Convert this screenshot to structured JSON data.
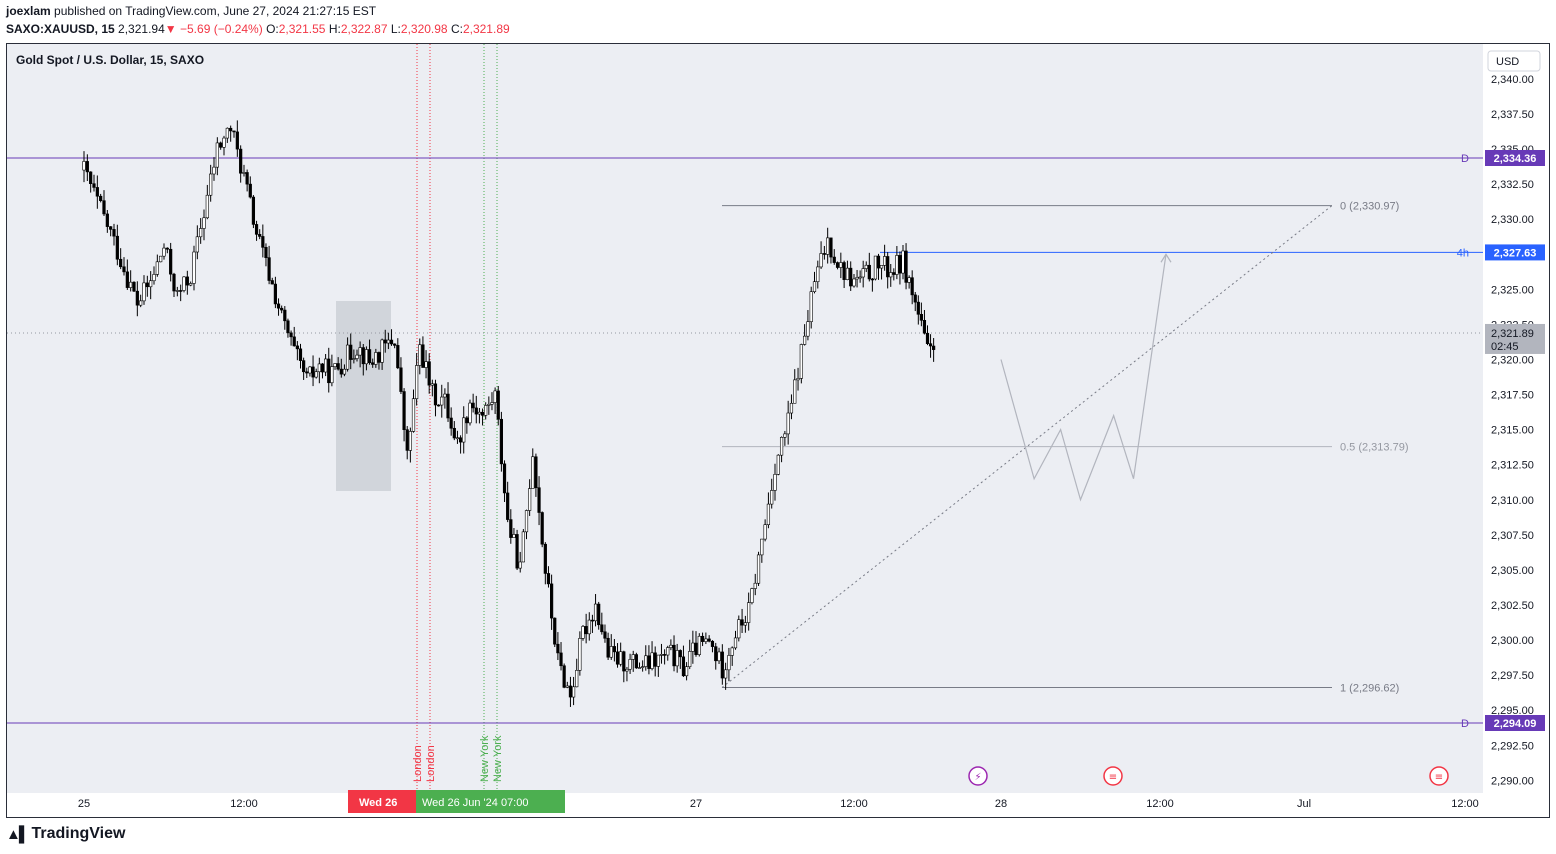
{
  "header": {
    "author": "joexlam",
    "published_text": "published on TradingView.com, June 27, 2024 21:27:15 EST",
    "symbol": "SAXO:XAUUSD, 15",
    "last": "2,321.94",
    "change": "−5.69 (−0.24%)",
    "o_label": "O:",
    "o_value": "2,321.55",
    "h_label": "H:",
    "h_value": "2,322.87",
    "l_label": "L:",
    "l_value": "2,320.98",
    "c_label": "C:",
    "c_value": "2,321.89"
  },
  "footer": {
    "brand": "TradingView"
  },
  "chart_data": {
    "type": "candlestick",
    "title": "Gold Spot / U.S. Dollar, 15, SAXO",
    "currency": "USD",
    "y_range": [
      2288.5,
      2341.5
    ],
    "y_ticks": [
      "2,290.00",
      "2,292.50",
      "2,295.00",
      "2,297.50",
      "2,300.00",
      "2,302.50",
      "2,305.00",
      "2,307.50",
      "2,310.00",
      "2,312.50",
      "2,315.00",
      "2,317.50",
      "2,320.00",
      "2,322.50",
      "2,325.00",
      "2,327.50",
      "2,330.00",
      "2,332.50",
      "2,335.00",
      "2,337.50",
      "2,340.00"
    ],
    "x_tick_labels": [
      "25",
      "12:00",
      "27",
      "12:00",
      "28",
      "12:00",
      "Jul",
      "12:00"
    ],
    "close_path": [
      [
        "Jun 25 00:00",
        2333.5
      ],
      [
        "Jun 25 02:00",
        2329
      ],
      [
        "Jun 25 04:00",
        2324
      ],
      [
        "Jun 25 05:00",
        2325.5
      ],
      [
        "Jun 25 06:00",
        2328
      ],
      [
        "Jun 25 07:00",
        2324.5
      ],
      [
        "Jun 25 08:00",
        2326
      ],
      [
        "Jun 25 10:00",
        2335
      ],
      [
        "Jun 25 11:00",
        2336.5
      ],
      [
        "Jun 25 12:00",
        2333
      ],
      [
        "Jun 25 13:00",
        2329
      ],
      [
        "Jun 25 14:00",
        2326
      ],
      [
        "Jun 25 15:00",
        2323
      ],
      [
        "Jun 25 16:00",
        2320.5
      ],
      [
        "Jun 25 17:00",
        2318.5
      ],
      [
        "Jun 25 18:00",
        2319.5
      ],
      [
        "Jun 25 19:00",
        2319
      ],
      [
        "Jun 25 20:00",
        2320
      ],
      [
        "Jun 25 21:00",
        2321
      ],
      [
        "Jun 25 22:00",
        2319.8
      ],
      [
        "Jun 26 00:00",
        2321.5
      ],
      [
        "Jun 26 01:00",
        2313
      ],
      [
        "Jun 26 02:00",
        2321
      ],
      [
        "Jun 26 03:00",
        2317.5
      ],
      [
        "Jun 26 04:00",
        2317
      ],
      [
        "Jun 26 05:00",
        2314
      ],
      [
        "Jun 26 06:00",
        2317
      ],
      [
        "Jun 26 07:00",
        2316
      ],
      [
        "Jun 26 08:00",
        2317.5
      ],
      [
        "Jun 26 09:00",
        2308.5
      ],
      [
        "Jun 26 10:00",
        2305
      ],
      [
        "Jun 26 11:00",
        2313.5
      ],
      [
        "Jun 26 12:00",
        2305
      ],
      [
        "Jun 26 13:00",
        2298.5
      ],
      [
        "Jun 26 14:00",
        2296
      ],
      [
        "Jun 26 15:00",
        2300.5
      ],
      [
        "Jun 26 16:00",
        2302.5
      ],
      [
        "Jun 26 17:00",
        2299
      ],
      [
        "Jun 26 18:00",
        2298.5
      ],
      [
        "Jun 26 20:00",
        2298.2
      ],
      [
        "Jun 26 22:00",
        2299
      ],
      [
        "Jun 26 23:00",
        2298
      ],
      [
        "Jun 27 00:00",
        2299.5
      ],
      [
        "Jun 27 01:00",
        2299.8
      ],
      [
        "Jun 27 02:00",
        2298
      ],
      [
        "Jun 27 03:00",
        2300.5
      ],
      [
        "Jun 27 04:00",
        2302
      ],
      [
        "Jun 27 05:00",
        2307
      ],
      [
        "Jun 27 06:00",
        2312.5
      ],
      [
        "Jun 27 07:00",
        2315.5
      ],
      [
        "Jun 27 08:00",
        2320.5
      ],
      [
        "Jun 27 09:00",
        2325.5
      ],
      [
        "Jun 27 10:00",
        2328.5
      ],
      [
        "Jun 27 11:00",
        2326.5
      ],
      [
        "Jun 27 12:00",
        2325.5
      ],
      [
        "Jun 27 13:00",
        2326
      ],
      [
        "Jun 27 14:00",
        2326.8
      ],
      [
        "Jun 27 15:00",
        2326.3
      ],
      [
        "Jun 27 16:00",
        2327
      ],
      [
        "Jun 27 17:00",
        2324
      ],
      [
        "Jun 27 18:00",
        2320.5
      ],
      [
        "Jun 27 18:45",
        2321.89
      ]
    ],
    "horizontal_levels": [
      {
        "tag": "D",
        "value": 2334.36,
        "label": "2,334.36",
        "color": "#673ab7"
      },
      {
        "tag": "4h",
        "value": 2327.63,
        "label": "2,327.63",
        "color": "#2962ff"
      },
      {
        "tag": "D",
        "value": 2294.09,
        "label": "2,294.09",
        "color": "#673ab7"
      }
    ],
    "fibonacci": [
      {
        "level": "0",
        "value": 2330.97,
        "label": "0 (2,330.97)"
      },
      {
        "level": "0.5",
        "value": 2313.79,
        "label": "0.5 (2,313.79)"
      },
      {
        "level": "1",
        "value": 2296.62,
        "label": "1 (2,296.62)"
      }
    ],
    "current_price": {
      "label": "2,321.89",
      "countdown": "02:45",
      "value": 2321.89
    },
    "projection_path": [
      [
        "Jun 28 00:00",
        2320
      ],
      [
        "Jun 28 02:30",
        2311.5
      ],
      [
        "Jun 28 04:30",
        2315
      ],
      [
        "Jun 28 06:00",
        2310
      ],
      [
        "Jun 28 08:30",
        2316
      ],
      [
        "Jun 28 10:00",
        2311.5
      ],
      [
        "Jun 28 13:30",
        2327.5
      ]
    ],
    "sessions": [
      {
        "name": "London",
        "color": "#f23645"
      },
      {
        "name": "London",
        "color": "#f23645"
      },
      {
        "name": "New York",
        "color": "#4caf50"
      },
      {
        "name": "New York",
        "color": "#4caf50"
      }
    ],
    "date_badges": [
      {
        "text": "Wed 26",
        "color": "#f23645"
      },
      {
        "text": "Wed 26 Jun '24   07:00",
        "color": "#4caf50"
      }
    ],
    "event_icons": [
      "lightning-icon",
      "us-flag-icon",
      "us-flag-icon"
    ]
  }
}
